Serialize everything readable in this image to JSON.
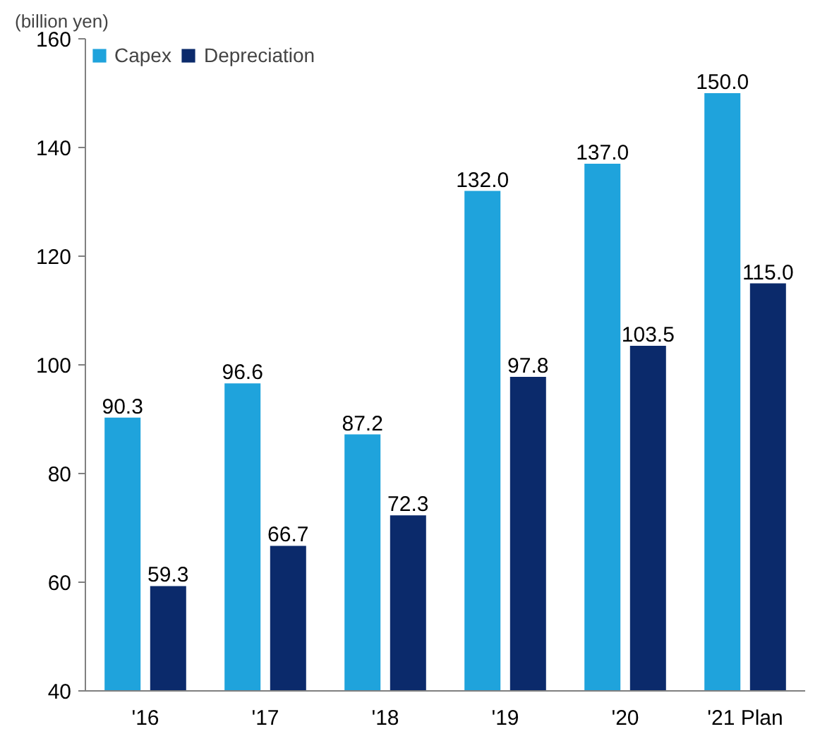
{
  "chart_data": {
    "type": "bar",
    "ylabel": "(billion yen)",
    "categories": [
      "'16",
      "'17",
      "'18",
      "'19",
      "'20",
      "'21 Plan"
    ],
    "series": [
      {
        "name": "Capex",
        "color": "#1fa3dc",
        "values": [
          90.3,
          96.6,
          87.2,
          132.0,
          137.0,
          150.0
        ],
        "value_labels": [
          "90.3",
          "96.6",
          "87.2",
          "132.0",
          "137.0",
          "150.0"
        ]
      },
      {
        "name": "Depreciation",
        "color": "#0b2a6b",
        "values": [
          59.3,
          66.7,
          72.3,
          97.8,
          103.5,
          115.0
        ],
        "value_labels": [
          "59.3",
          "66.7",
          "72.3",
          "97.8",
          "103.5",
          "115.0"
        ]
      }
    ],
    "ylim": [
      40,
      160
    ],
    "yticks": [
      40,
      60,
      80,
      100,
      120,
      140,
      160
    ],
    "grid": false,
    "legend": "top left"
  }
}
